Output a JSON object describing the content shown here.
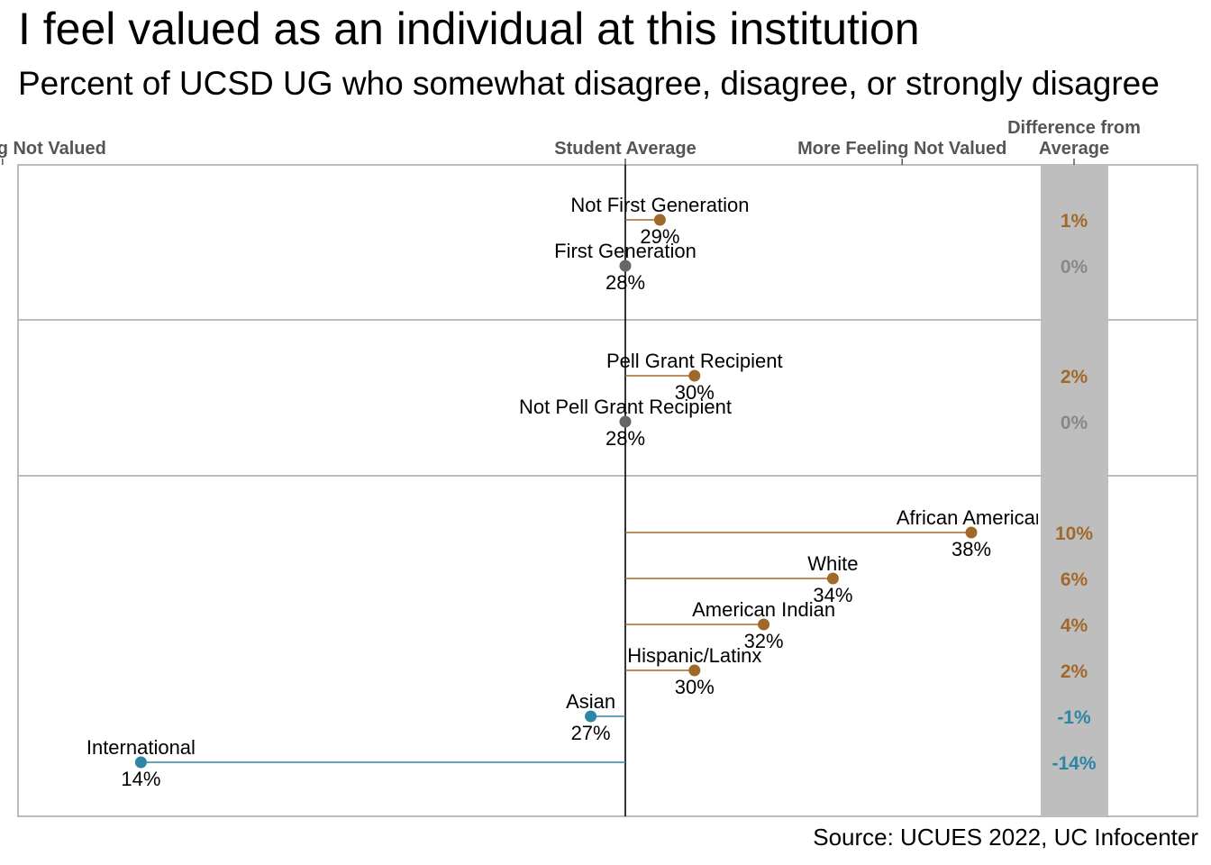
{
  "title": "I feel valued as an individual at this institution",
  "subtitle": "Percent of UCSD UG who somewhat disagree, disagree, or strongly disagree",
  "source": "Source: UCUES 2022, UC Infocenter",
  "axis": {
    "left_label": "Less Feeling Not Valued",
    "center_label": "Student Average",
    "right_label": "More Feeling Not Valued",
    "diff_header_line1": "Difference from",
    "diff_header_line2": "Average"
  },
  "colors": {
    "above": "#A0692A",
    "below": "#2E86A5",
    "equal": "#666666",
    "diff_equal": "#888888",
    "panel_border": "#BBBBBB",
    "diff_column": "#BEBEBE"
  },
  "chart_data": {
    "type": "dot",
    "average": 28,
    "x_unit": "%",
    "xlim": [
      10,
      40
    ],
    "panels": [
      {
        "rows": [
          {
            "label": "Not First Generation",
            "value": 29,
            "value_label": "29%",
            "diff_label": "1%"
          },
          {
            "label": "First Generation",
            "value": 28,
            "value_label": "28%",
            "diff_label": "0%"
          }
        ]
      },
      {
        "rows": [
          {
            "label": "Pell Grant Recipient",
            "value": 30,
            "value_label": "30%",
            "diff_label": "2%"
          },
          {
            "label": "Not Pell Grant Recipient",
            "value": 28,
            "value_label": "28%",
            "diff_label": "0%"
          }
        ]
      },
      {
        "rows": [
          {
            "label": "African American",
            "value": 38,
            "value_label": "38%",
            "diff_label": "10%"
          },
          {
            "label": "White",
            "value": 34,
            "value_label": "34%",
            "diff_label": "6%"
          },
          {
            "label": "American Indian",
            "value": 32,
            "value_label": "32%",
            "diff_label": "4%"
          },
          {
            "label": "Hispanic/Latinx",
            "value": 30,
            "value_label": "30%",
            "diff_label": "2%"
          },
          {
            "label": "Asian",
            "value": 27,
            "value_label": "27%",
            "diff_label": "-1%"
          },
          {
            "label": "International",
            "value": 14,
            "value_label": "14%",
            "diff_label": "-14%"
          }
        ]
      }
    ]
  }
}
